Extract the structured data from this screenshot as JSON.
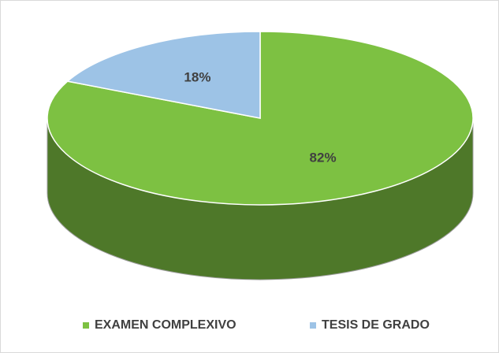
{
  "chart_data": {
    "type": "pie",
    "categories": [
      "EXAMEN COMPLEXIVO",
      "TESIS DE GRADO"
    ],
    "values": [
      82,
      18
    ],
    "value_labels": [
      "82%",
      "18%"
    ],
    "colors": [
      "#7dc142",
      "#9dc3e6"
    ],
    "legend": "bottom"
  }
}
